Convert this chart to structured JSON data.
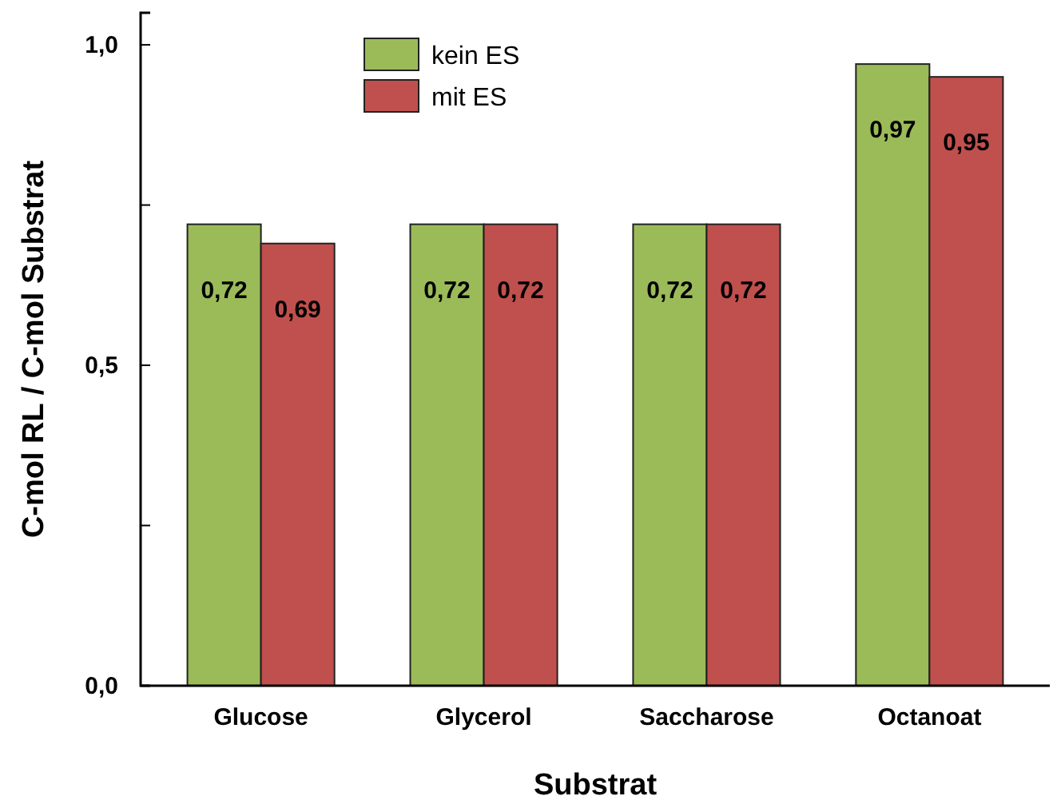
{
  "chart_data": {
    "type": "bar",
    "xlabel": "Substrat",
    "ylabel": "C-mol RL / C-mol Substrat",
    "categories": [
      "Glucose",
      "Glycerol",
      "Saccharose",
      "Octanoat"
    ],
    "series": [
      {
        "name": "kein ES",
        "color": "#9bbb59",
        "values": [
          0.72,
          0.72,
          0.72,
          0.97
        ],
        "value_labels": [
          "0,72",
          "0,72",
          "0,72",
          "0,97"
        ]
      },
      {
        "name": "mit ES",
        "color": "#c0504d",
        "values": [
          0.69,
          0.72,
          0.72,
          0.95
        ],
        "value_labels": [
          "0,69",
          "0,72",
          "0,72",
          "0,95"
        ]
      }
    ],
    "ylim": [
      0,
      1.05
    ],
    "yticks": [
      {
        "value": 0,
        "label": "0,0"
      },
      {
        "value": 0.25,
        "label": null
      },
      {
        "value": 0.5,
        "label": "0,5"
      },
      {
        "value": 0.75,
        "label": null
      },
      {
        "value": 1,
        "label": "1,0"
      }
    ],
    "legend": "top center",
    "grid": false
  }
}
